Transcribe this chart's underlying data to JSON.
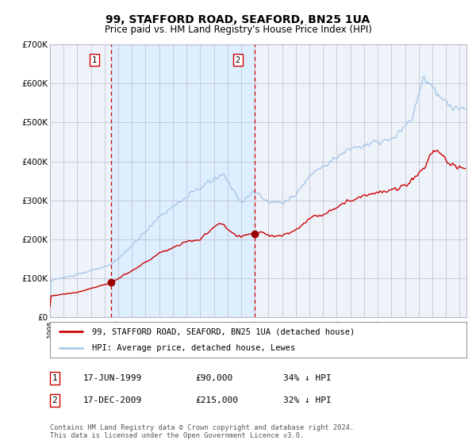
{
  "title": "99, STAFFORD ROAD, SEAFORD, BN25 1UA",
  "subtitle": "Price paid vs. HM Land Registry's House Price Index (HPI)",
  "title_fontsize": 10,
  "subtitle_fontsize": 8.5,
  "hpi_color": "#a8c8e8",
  "price_color": "#cc0000",
  "marker_color": "#990000",
  "vline_color": "#cc0000",
  "shade_color": "#ddeeff",
  "grid_color": "#bbbbcc",
  "background_color": "#ffffff",
  "plot_bg_color": "#eef3fa",
  "ylim": [
    0,
    700000
  ],
  "yticks": [
    0,
    100000,
    200000,
    300000,
    400000,
    500000,
    600000,
    700000
  ],
  "ytick_labels": [
    "£0",
    "£100K",
    "£200K",
    "£300K",
    "£400K",
    "£500K",
    "£600K",
    "£700K"
  ],
  "sale1_date_num": 1999.46,
  "sale1_price": 90000,
  "sale2_date_num": 2009.96,
  "sale2_price": 215000,
  "legend_line1": "99, STAFFORD ROAD, SEAFORD, BN25 1UA (detached house)",
  "legend_line2": "HPI: Average price, detached house, Lewes",
  "table_row1_num": "1",
  "table_row1_date": "17-JUN-1999",
  "table_row1_price": "£90,000",
  "table_row1_hpi": "34% ↓ HPI",
  "table_row2_num": "2",
  "table_row2_date": "17-DEC-2009",
  "table_row2_price": "£215,000",
  "table_row2_hpi": "32% ↓ HPI",
  "footer": "Contains HM Land Registry data © Crown copyright and database right 2024.\nThis data is licensed under the Open Government Licence v3.0.",
  "xstart": 1995.0,
  "xend": 2025.5
}
